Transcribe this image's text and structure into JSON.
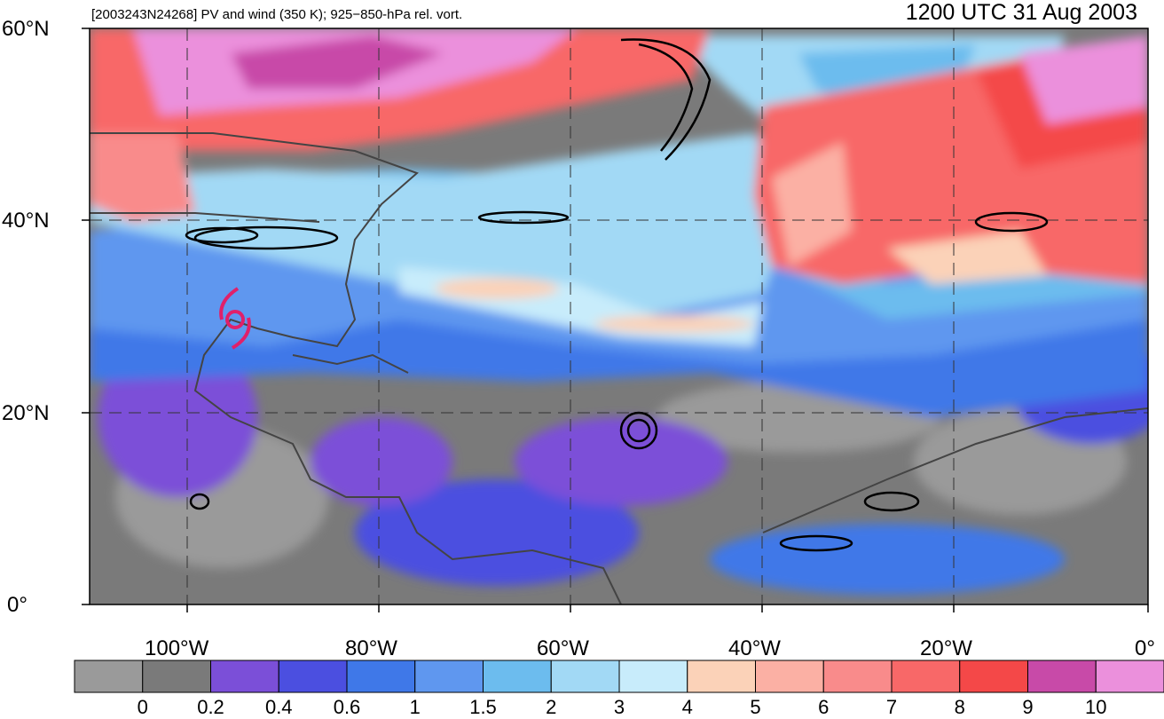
{
  "header": {
    "left_title": "[2003243N24268] PV and wind (350 K); 925−850-hPa rel. vort.",
    "right_title": "1200 UTC 31 Aug 2003"
  },
  "axes": {
    "lat_labels": [
      "60°N",
      "40°N",
      "20°N",
      "0°"
    ],
    "lon_labels": [
      "100°W",
      "80°W",
      "60°W",
      "40°W",
      "20°W",
      "0°"
    ]
  },
  "colorbar": {
    "labels": [
      "0",
      "0.2",
      "0.4",
      "0.6",
      "1",
      "1.5",
      "2",
      "3",
      "4",
      "5",
      "6",
      "7",
      "8",
      "9",
      "10"
    ],
    "colors": [
      "#9a9a9a",
      "#7a7a7a",
      "#7b4fd8",
      "#4b4fe0",
      "#3f78e8",
      "#5f97ef",
      "#6cbcee",
      "#a2d9f5",
      "#c8ecfb",
      "#fbd2b8",
      "#fbb0a4",
      "#f98b8b",
      "#f86868",
      "#f44848",
      "#c84aa8",
      "#eb90dc"
    ]
  },
  "map_style": {
    "gray_dark": "#7a7a7a",
    "gray_light": "#9a9a9a",
    "purple": "#7b4fd8",
    "blue": "#3f78e8",
    "light_blue": "#6cbcee",
    "pale_blue": "#c8ecfb",
    "peach": "#fbd2b8",
    "red": "#f86868",
    "magenta": "#c84aa8",
    "pink": "#eb90dc",
    "storm_symbol_color": "#e0206a"
  }
}
